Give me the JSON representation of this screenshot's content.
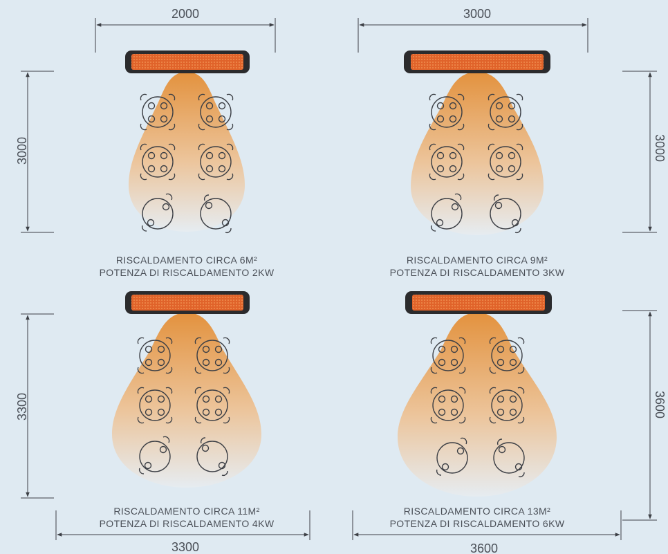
{
  "colors": {
    "background": "#dfeaf2",
    "heat_top": "#e3923e",
    "heat_bottom": "#e6ecf1",
    "heater_body": "#2b2b2d",
    "heater_element": "#e0632a",
    "line": "#3c3f45",
    "text": "#4a4f57"
  },
  "panels": [
    {
      "width_label": "2000",
      "depth_label": "3000",
      "area_caption": "RISCALDAMENTO CIRCA 6M²",
      "power_caption": "POTENZA DI RISCALDAMENTO 2KW"
    },
    {
      "width_label": "3000",
      "depth_label": "3000",
      "area_caption": "RISCALDAMENTO CIRCA 9M²",
      "power_caption": "POTENZA DI RISCALDAMENTO 3KW"
    },
    {
      "width_label": "3300",
      "depth_label": "3300",
      "area_caption": "RISCALDAMENTO CIRCA 11M²",
      "power_caption": "POTENZA DI RISCALDAMENTO 4KW"
    },
    {
      "width_label": "3600",
      "depth_label": "3600",
      "area_caption": "RISCALDAMENTO CIRCA 13M²",
      "power_caption": "POTENZA DI RISCALDAMENTO 6KW"
    }
  ]
}
